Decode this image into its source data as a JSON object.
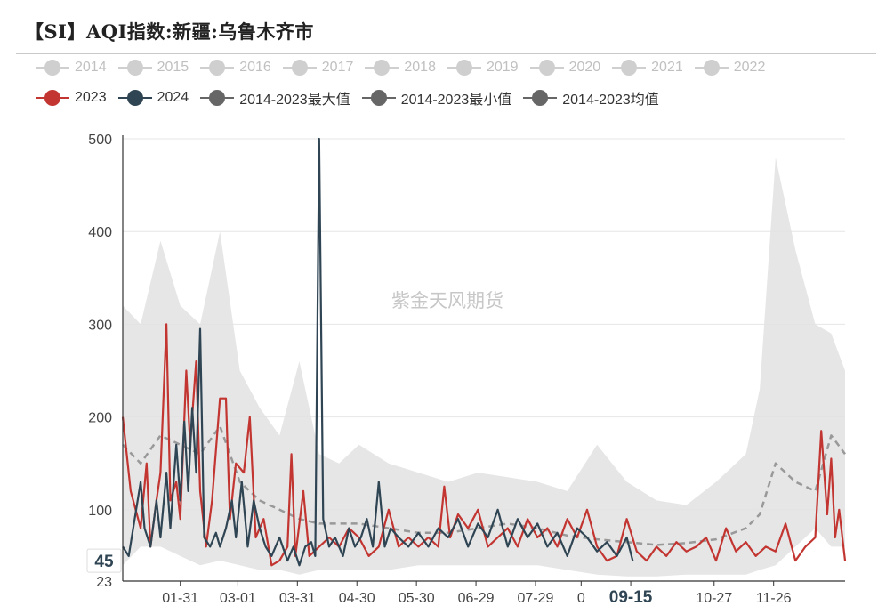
{
  "title": "【SI】AQI指数:新疆:乌鲁木齐市",
  "watermark": "紫金天风期货",
  "legend": [
    {
      "label": "2014",
      "color": "#cfcfcf",
      "active": false
    },
    {
      "label": "2015",
      "color": "#cfcfcf",
      "active": false
    },
    {
      "label": "2016",
      "color": "#cfcfcf",
      "active": false
    },
    {
      "label": "2017",
      "color": "#cfcfcf",
      "active": false
    },
    {
      "label": "2018",
      "color": "#cfcfcf",
      "active": false
    },
    {
      "label": "2019",
      "color": "#cfcfcf",
      "active": false
    },
    {
      "label": "2020",
      "color": "#cfcfcf",
      "active": false
    },
    {
      "label": "2021",
      "color": "#cfcfcf",
      "active": false
    },
    {
      "label": "2022",
      "color": "#cfcfcf",
      "active": false
    },
    {
      "label": "2023",
      "color": "#c23531",
      "active": true
    },
    {
      "label": "2024",
      "color": "#2f4554",
      "active": true
    },
    {
      "label": "2014-2023最大值",
      "color": "#666666",
      "active": true
    },
    {
      "label": "2014-2023最小值",
      "color": "#666666",
      "active": true
    },
    {
      "label": "2014-2023均值",
      "color": "#666666",
      "active": true
    }
  ],
  "chart_data": {
    "type": "line",
    "title": "【SI】AQI指数:新疆:乌鲁木齐市",
    "xlabel": "",
    "ylabel": "",
    "x_ticks": [
      "01-31",
      "03-01",
      "03-31",
      "04-30",
      "05-30",
      "06-29",
      "07-29",
      "0",
      "09-15",
      "10-27",
      "11-26"
    ],
    "x_tick_days": [
      30,
      59,
      89,
      119,
      149,
      179,
      209,
      232,
      257,
      299,
      329
    ],
    "x_highlight": "09-15",
    "ylim": [
      23,
      500
    ],
    "y_ticks": [
      23,
      100,
      200,
      300,
      400,
      500
    ],
    "y_marker": {
      "value": 45,
      "label": "45"
    },
    "x_range_days": [
      1,
      365
    ],
    "grid": true,
    "legend_position": "top",
    "band": {
      "name_max": "2014-2023最大值",
      "name_min": "2014-2023最小值",
      "x": [
        1,
        10,
        20,
        30,
        40,
        50,
        60,
        70,
        80,
        90,
        100,
        110,
        120,
        135,
        150,
        165,
        180,
        195,
        210,
        225,
        240,
        255,
        270,
        285,
        300,
        315,
        322,
        330,
        340,
        350,
        358,
        365
      ],
      "max": [
        320,
        300,
        390,
        320,
        300,
        400,
        250,
        210,
        180,
        260,
        160,
        150,
        170,
        150,
        140,
        130,
        140,
        135,
        130,
        120,
        170,
        130,
        110,
        105,
        130,
        160,
        230,
        480,
        380,
        300,
        290,
        250
      ],
      "min": [
        40,
        60,
        60,
        50,
        40,
        45,
        40,
        35,
        35,
        30,
        35,
        35,
        35,
        35,
        40,
        40,
        40,
        40,
        40,
        35,
        30,
        28,
        28,
        30,
        30,
        30,
        35,
        40,
        60,
        80,
        60,
        60
      ]
    },
    "series": [
      {
        "name": "2014-2023均值",
        "color": "#999999",
        "dashed": true,
        "x": [
          1,
          10,
          20,
          30,
          40,
          50,
          60,
          70,
          80,
          90,
          100,
          110,
          120,
          135,
          150,
          165,
          180,
          195,
          210,
          225,
          240,
          255,
          270,
          285,
          300,
          315,
          322,
          330,
          340,
          350,
          358,
          365
        ],
        "y": [
          170,
          150,
          180,
          170,
          160,
          190,
          130,
          110,
          100,
          90,
          85,
          85,
          85,
          80,
          75,
          75,
          80,
          85,
          80,
          72,
          68,
          65,
          62,
          64,
          68,
          80,
          95,
          150,
          130,
          120,
          180,
          160
        ]
      },
      {
        "name": "2023",
        "color": "#c23531",
        "dashed": false,
        "x": [
          1,
          5,
          10,
          13,
          15,
          18,
          20,
          23,
          25,
          28,
          30,
          33,
          35,
          38,
          40,
          43,
          46,
          50,
          53,
          55,
          58,
          62,
          65,
          68,
          72,
          76,
          80,
          84,
          86,
          88,
          92,
          95,
          100,
          105,
          110,
          115,
          120,
          125,
          130,
          135,
          140,
          145,
          150,
          155,
          160,
          163,
          166,
          170,
          175,
          180,
          185,
          190,
          195,
          200,
          205,
          210,
          215,
          220,
          225,
          230,
          235,
          240,
          245,
          250,
          255,
          260,
          265,
          270,
          275,
          280,
          285,
          290,
          295,
          300,
          305,
          310,
          315,
          320,
          325,
          330,
          335,
          340,
          345,
          350,
          353,
          356,
          358,
          360,
          362,
          365
        ],
        "y": [
          200,
          120,
          80,
          150,
          60,
          110,
          140,
          300,
          110,
          130,
          90,
          250,
          170,
          260,
          120,
          60,
          110,
          220,
          220,
          90,
          150,
          140,
          200,
          70,
          90,
          40,
          45,
          60,
          160,
          50,
          120,
          50,
          60,
          70,
          60,
          80,
          70,
          50,
          60,
          100,
          60,
          70,
          60,
          70,
          60,
          125,
          70,
          95,
          80,
          100,
          60,
          70,
          80,
          60,
          90,
          70,
          80,
          60,
          90,
          70,
          100,
          60,
          45,
          50,
          90,
          55,
          45,
          60,
          50,
          65,
          55,
          60,
          70,
          45,
          80,
          55,
          65,
          50,
          60,
          55,
          85,
          45,
          60,
          70,
          185,
          95,
          155,
          70,
          100,
          45
        ]
      },
      {
        "name": "2024",
        "color": "#2f4554",
        "dashed": false,
        "x": [
          1,
          4,
          7,
          10,
          12,
          15,
          18,
          20,
          23,
          25,
          28,
          30,
          32,
          34,
          36,
          38,
          40,
          42,
          45,
          48,
          50,
          53,
          56,
          58,
          61,
          64,
          67,
          70,
          73,
          76,
          80,
          84,
          87,
          90,
          93,
          96,
          98,
          100,
          102,
          105,
          108,
          112,
          115,
          118,
          121,
          124,
          127,
          130,
          133,
          136,
          140,
          145,
          150,
          155,
          160,
          165,
          170,
          175,
          180,
          185,
          190,
          195,
          200,
          205,
          210,
          215,
          220,
          225,
          230,
          235,
          240,
          245,
          250,
          255,
          258
        ],
        "y": [
          60,
          50,
          90,
          130,
          80,
          60,
          110,
          70,
          140,
          80,
          170,
          110,
          195,
          120,
          210,
          140,
          295,
          70,
          60,
          75,
          60,
          80,
          110,
          70,
          130,
          60,
          110,
          80,
          60,
          50,
          70,
          45,
          60,
          40,
          60,
          65,
          50,
          500,
          90,
          60,
          70,
          50,
          80,
          60,
          70,
          90,
          60,
          130,
          60,
          80,
          70,
          60,
          75,
          60,
          80,
          70,
          90,
          60,
          85,
          70,
          100,
          60,
          90,
          70,
          85,
          60,
          75,
          50,
          80,
          70,
          55,
          65,
          50,
          70,
          45
        ]
      }
    ]
  }
}
